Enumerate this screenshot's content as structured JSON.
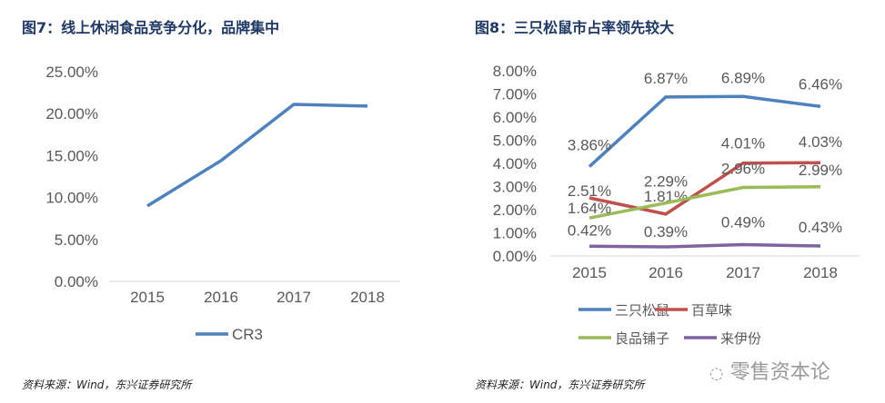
{
  "chart_data": [
    {
      "type": "line",
      "title": "图7：线上休闲食品竞争分化，品牌集中",
      "categories": [
        "2015",
        "2016",
        "2017",
        "2018"
      ],
      "series": [
        {
          "name": "CR3",
          "values": [
            9.0,
            14.4,
            21.1,
            20.9
          ],
          "color": "#4f81bd"
        }
      ],
      "ylim": [
        0,
        25
      ],
      "yticks": [
        "0.00%",
        "5.00%",
        "10.00%",
        "15.00%",
        "20.00%",
        "25.00%"
      ],
      "legend": "bottom",
      "grid": false,
      "source": "资料来源：Wind，东兴证券研究所"
    },
    {
      "type": "line",
      "title": "图8：三只松鼠市占率领先较大",
      "categories": [
        "2015",
        "2016",
        "2017",
        "2018"
      ],
      "series": [
        {
          "name": "三只松鼠",
          "values": [
            3.86,
            6.87,
            6.89,
            6.46
          ],
          "labels": [
            "3.86%",
            "6.87%",
            "6.89%",
            "6.46%"
          ],
          "color": "#4f81bd"
        },
        {
          "name": "百草味",
          "values": [
            2.51,
            1.81,
            4.01,
            4.03
          ],
          "labels": [
            "2.51%",
            "1.81%",
            "4.01%",
            "4.03%"
          ],
          "color": "#c0504d"
        },
        {
          "name": "良品铺子",
          "values": [
            1.64,
            2.29,
            2.96,
            2.99
          ],
          "labels": [
            "1.64%",
            "2.29%",
            "2.96%",
            "2.99%"
          ],
          "color": "#9bbb59"
        },
        {
          "name": "来伊份",
          "values": [
            0.42,
            0.39,
            0.49,
            0.43
          ],
          "labels": [
            "0.42%",
            "0.39%",
            "0.49%",
            "0.43%"
          ],
          "color": "#8064a2"
        }
      ],
      "ylim": [
        0,
        8
      ],
      "yticks": [
        "0.00%",
        "1.00%",
        "2.00%",
        "3.00%",
        "4.00%",
        "5.00%",
        "6.00%",
        "7.00%",
        "8.00%"
      ],
      "legend": "bottom",
      "grid": false,
      "source": "资料来源：Wind，东兴证券研究所"
    }
  ],
  "watermark": "零售资本论"
}
